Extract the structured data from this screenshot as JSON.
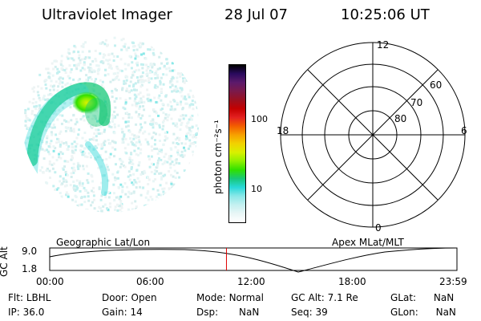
{
  "header": {
    "title": "Ultraviolet Imager",
    "date": "28 Jul 07",
    "time": "10:25:06 UT"
  },
  "colorbar": {
    "unit_label": "photon cm⁻²s⁻¹",
    "tick_labels": [
      "100",
      "10"
    ],
    "colors": [
      "#000000",
      "#2a0a5e",
      "#5c1a6b",
      "#7b1a4a",
      "#9a1020",
      "#c40000",
      "#e32020",
      "#f35e00",
      "#f7a000",
      "#f2d200",
      "#d8f000",
      "#90f000",
      "#30e000",
      "#18c878",
      "#28d8d8",
      "#8ae8e8",
      "#c4f0f0",
      "#e8f6f6",
      "#ffffff"
    ]
  },
  "polar_grid": {
    "mlt_labels": {
      "top": "12",
      "left": "18",
      "right": "6",
      "bottom": "0"
    },
    "lat_labels": [
      "60",
      "70",
      "80"
    ]
  },
  "timeline": {
    "title_left": "Geographic Lat/Lon",
    "title_right": "Apex MLat/MLT",
    "y_axis_label": "GC Alt",
    "y_ticks": [
      "9.0",
      "1.8"
    ],
    "x_ticks": [
      "00:00",
      "06:00",
      "12:00",
      "18:00",
      "23:59"
    ],
    "current_time_fraction": 0.434
  },
  "info": {
    "filter": {
      "label": "Flt:",
      "value": "LBHL"
    },
    "ip": {
      "label": "IP:",
      "value": "36.0"
    },
    "door": {
      "label": "Door:",
      "value": "Open"
    },
    "gain": {
      "label": "Gain:",
      "value": "14"
    },
    "mode": {
      "label": "Mode:",
      "value": "Normal"
    },
    "dsp": {
      "label": "Dsp:",
      "value": "NaN"
    },
    "gc_alt": {
      "label": "GC Alt:",
      "value": "7.1 Re"
    },
    "seq": {
      "label": "Seq:",
      "value": "39"
    },
    "glat": {
      "label": "GLat:",
      "value": "NaN"
    },
    "glon": {
      "label": "GLon:",
      "value": "NaN"
    }
  }
}
